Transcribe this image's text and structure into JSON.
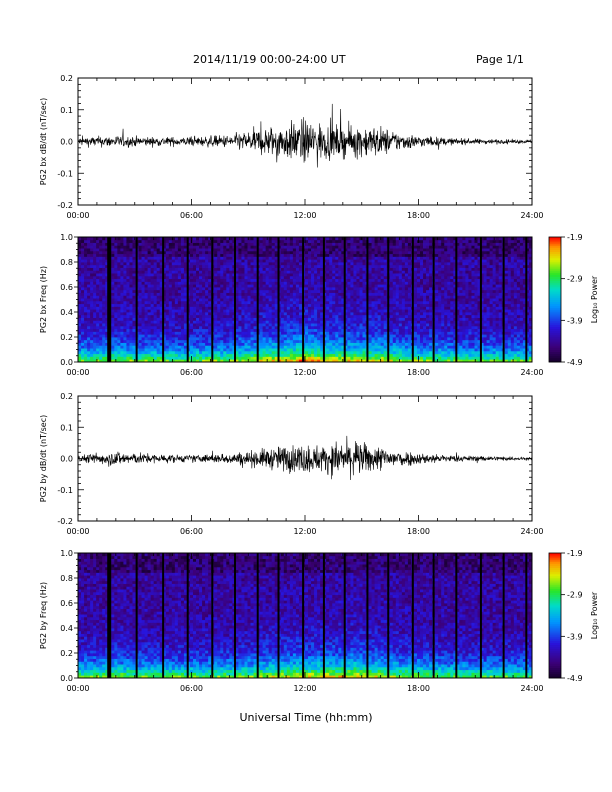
{
  "header": {
    "title": "2014/11/19  00:00-24:00 UT",
    "page": "Page 1/1"
  },
  "xaxis_label": "Universal Time (hh:mm)",
  "chart_data": [
    {
      "type": "line",
      "panel": "PG2 bx dB/dt",
      "ylabel": "PG2 bx dB/dt (nT/sec)",
      "xlim": [
        "00:00",
        "24:00"
      ],
      "ylim": [
        -0.2,
        0.2
      ],
      "yticks": [
        "0.2",
        "0.1",
        "0.0",
        "-0.1",
        "-0.2"
      ],
      "xticks": [
        "00:00",
        "06:00",
        "12:00",
        "18:00",
        "24:00"
      ],
      "envelope": {
        "hours": [
          0,
          2,
          4,
          6,
          8,
          9,
          10,
          11,
          12,
          13,
          14,
          15,
          16,
          17,
          18,
          20,
          22,
          24
        ],
        "amplitude": [
          0.015,
          0.02,
          0.015,
          0.015,
          0.022,
          0.035,
          0.05,
          0.06,
          0.075,
          0.06,
          0.05,
          0.055,
          0.05,
          0.03,
          0.02,
          0.01,
          0.008,
          0.005
        ]
      }
    },
    {
      "type": "heatmap",
      "panel": "PG2 bx Freq",
      "ylabel": "PG2 bx Freq (Hz)",
      "xlim": [
        "00:00",
        "24:00"
      ],
      "ylim": [
        0.0,
        1.0
      ],
      "yticks": [
        "1.0",
        "0.8",
        "0.6",
        "0.4",
        "0.2",
        "0.0"
      ],
      "xticks": [
        "00:00",
        "06:00",
        "12:00",
        "18:00",
        "24:00"
      ],
      "colorbar": {
        "label": "Log₁₀ Power",
        "ticks": [
          "-1.9",
          "-2.9",
          "-3.9",
          "-4.9"
        ],
        "range": [
          -4.9,
          -1.9
        ]
      },
      "gap_lines_hours": [
        1.65,
        3.1,
        4.5,
        5.8,
        7.1,
        8.3,
        9.5,
        10.6,
        11.9,
        13.0,
        14.1,
        15.3,
        16.4,
        17.7,
        18.8,
        20.0,
        21.3,
        22.5,
        23.7
      ]
    },
    {
      "type": "line",
      "panel": "PG2 by dB/dt",
      "ylabel": "PG2 by dB/dt (nT/sec)",
      "xlim": [
        "00:00",
        "24:00"
      ],
      "ylim": [
        -0.2,
        0.2
      ],
      "yticks": [
        "0.2",
        "0.1",
        "0.0",
        "-0.1",
        "-0.2"
      ],
      "xticks": [
        "00:00",
        "06:00",
        "12:00",
        "18:00",
        "24:00"
      ],
      "envelope": {
        "hours": [
          0,
          1,
          2,
          4,
          6,
          8,
          9,
          10,
          11,
          12,
          13,
          14,
          15,
          16,
          17,
          18,
          20,
          22,
          24
        ],
        "amplitude": [
          0.01,
          0.02,
          0.025,
          0.015,
          0.012,
          0.018,
          0.025,
          0.035,
          0.045,
          0.05,
          0.045,
          0.06,
          0.055,
          0.04,
          0.03,
          0.02,
          0.01,
          0.008,
          0.005
        ]
      }
    },
    {
      "type": "heatmap",
      "panel": "PG2 by Freq",
      "ylabel": "PG2 by Freq (Hz)",
      "xlim": [
        "00:00",
        "24:00"
      ],
      "ylim": [
        0.0,
        1.0
      ],
      "yticks": [
        "1.0",
        "0.8",
        "0.6",
        "0.4",
        "0.2",
        "0.0"
      ],
      "xticks": [
        "00:00",
        "06:00",
        "12:00",
        "18:00",
        "24:00"
      ],
      "colorbar": {
        "label": "Log₁₀ Power",
        "ticks": [
          "-1.9",
          "-2.9",
          "-3.9",
          "-4.9"
        ],
        "range": [
          -4.9,
          -1.9
        ]
      },
      "gap_lines_hours": [
        1.65,
        3.1,
        4.5,
        5.8,
        7.1,
        8.3,
        9.5,
        10.6,
        11.9,
        13.0,
        14.1,
        15.3,
        16.4,
        17.7,
        18.8,
        20.0,
        21.3,
        22.5,
        23.7
      ]
    }
  ]
}
